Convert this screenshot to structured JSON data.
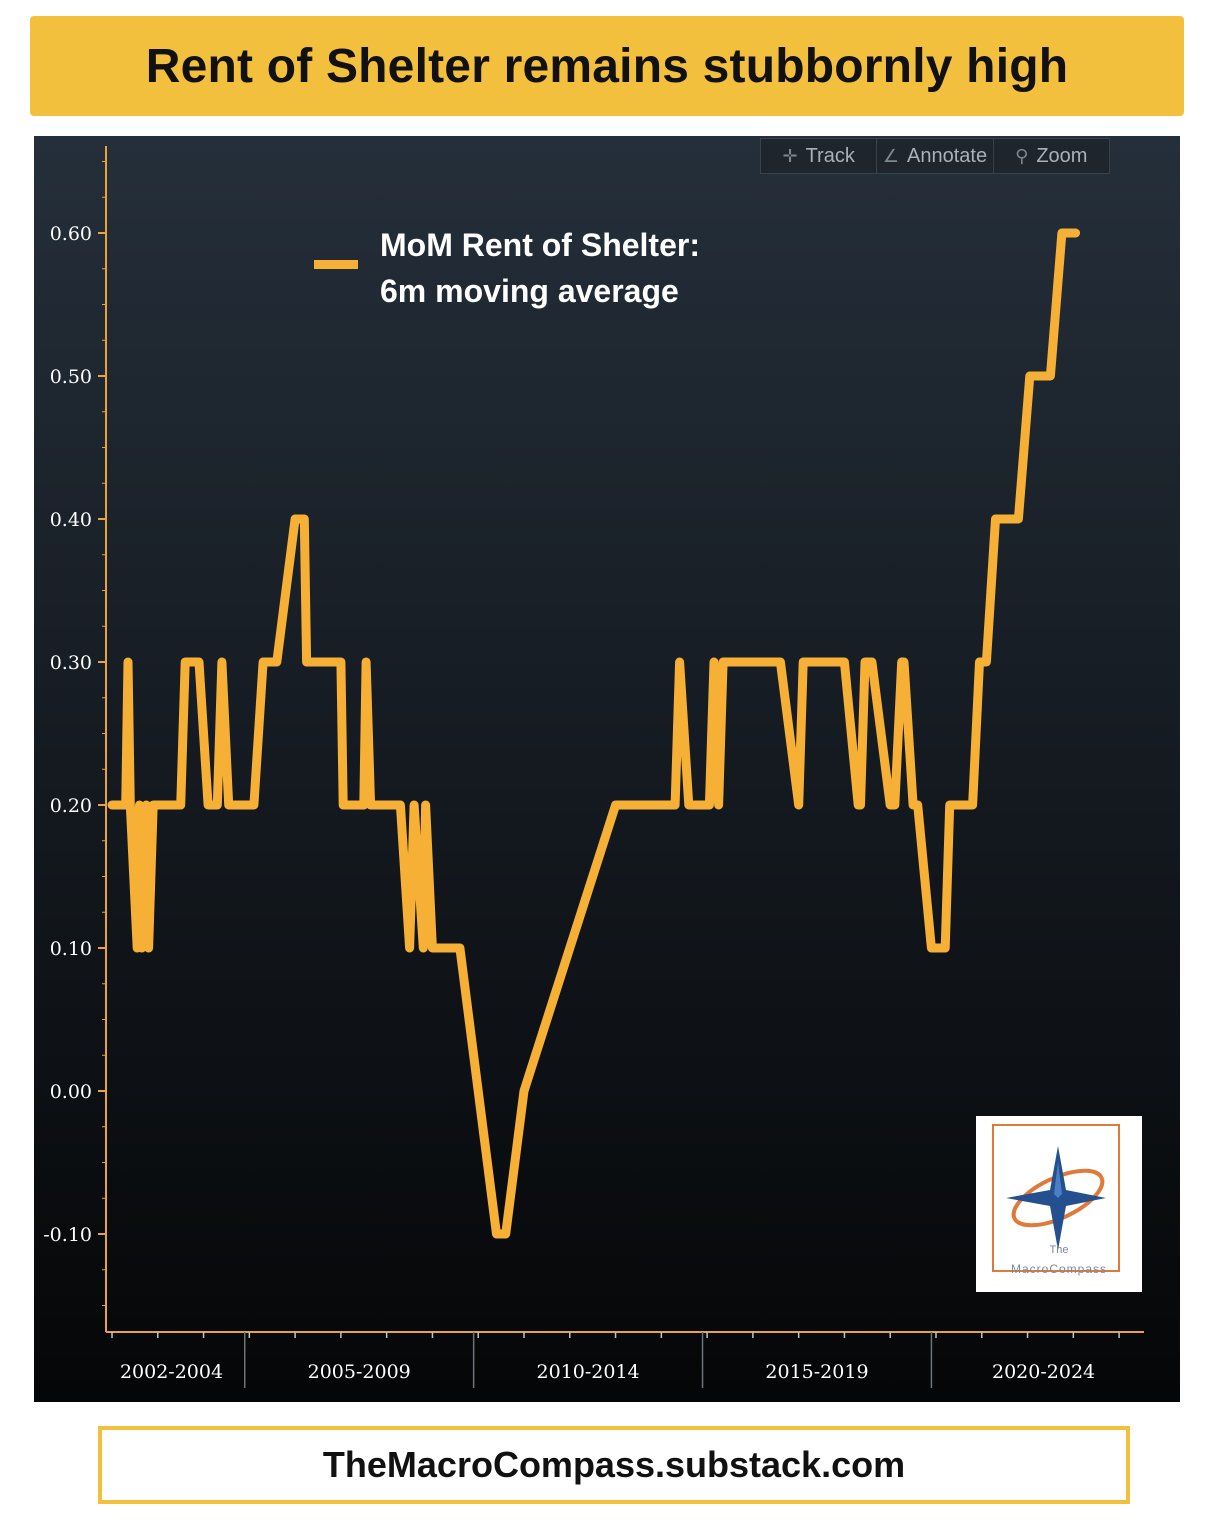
{
  "title": "Rent of Shelter remains stubbornly high",
  "footer": "TheMacroCompass.substack.com",
  "toolbar": {
    "track": "Track",
    "annotate": "Annotate",
    "zoom": "Zoom"
  },
  "legend": {
    "line1": "MoM Rent of Shelter:",
    "line2": "6m moving average"
  },
  "logo": {
    "line1": "The",
    "line2": "MacroCompass"
  },
  "colors": {
    "series": "#f5b035",
    "banner": "#f3c03e",
    "background": "#0b0e12"
  },
  "chart_data": {
    "type": "line",
    "series": [
      {
        "name": "MoM Rent of Shelter: 6m moving average",
        "x": [
          2002.0,
          2002.3,
          2002.35,
          2002.4,
          2002.55,
          2002.6,
          2002.65,
          2002.75,
          2002.8,
          2002.9,
          2003.0,
          2003.5,
          2003.6,
          2003.9,
          2004.1,
          2004.3,
          2004.4,
          2004.55,
          2004.7,
          2004.8,
          2005.1,
          2005.3,
          2005.6,
          2006.0,
          2006.1,
          2006.2,
          2006.25,
          2006.45,
          2006.55,
          2006.6,
          2007.0,
          2007.05,
          2007.3,
          2007.5,
          2007.55,
          2007.65,
          2007.7,
          2007.95,
          2008.3,
          2008.5,
          2008.6,
          2008.8,
          2008.85,
          2009.0,
          2009.1,
          2009.25,
          2009.4,
          2009.5,
          2009.6,
          2010.0,
          2010.4,
          2010.6,
          2011.0,
          2012.0,
          2013.0,
          2014.0,
          2014.2,
          2014.3,
          2014.4,
          2014.6,
          2015.05,
          2015.15,
          2015.25,
          2015.35,
          2015.4,
          2015.6,
          2016.0,
          2016.5,
          2016.6,
          2017.0,
          2017.1,
          2017.3,
          2017.6,
          2018.0,
          2018.3,
          2018.35,
          2018.45,
          2018.55,
          2018.6,
          2019.0,
          2019.1,
          2019.25,
          2019.3,
          2019.5,
          2019.6,
          2019.9,
          2020.2,
          2020.3,
          2020.8,
          2020.95,
          2021.1,
          2021.3,
          2021.4,
          2021.55,
          2021.8,
          2022.05,
          2022.4,
          2022.5,
          2022.75,
          2022.85,
          2023.05
        ],
        "y": [
          0.2,
          0.2,
          0.3,
          0.2,
          0.1,
          0.2,
          0.1,
          0.2,
          0.1,
          0.2,
          0.2,
          0.2,
          0.3,
          0.3,
          0.2,
          0.2,
          0.3,
          0.2,
          0.2,
          0.2,
          0.2,
          0.3,
          0.3,
          0.4,
          0.4,
          0.4,
          0.3,
          0.3,
          0.3,
          0.3,
          0.3,
          0.2,
          0.2,
          0.2,
          0.3,
          0.2,
          0.2,
          0.2,
          0.2,
          0.1,
          0.2,
          0.1,
          0.2,
          0.1,
          0.1,
          0.1,
          0.1,
          0.1,
          0.1,
          0.0,
          -0.1,
          -0.1,
          0.0,
          0.1,
          0.2,
          0.2,
          0.2,
          0.2,
          0.3,
          0.2,
          0.2,
          0.3,
          0.2,
          0.3,
          0.3,
          0.3,
          0.3,
          0.3,
          0.3,
          0.2,
          0.3,
          0.3,
          0.3,
          0.3,
          0.2,
          0.2,
          0.3,
          0.3,
          0.3,
          0.2,
          0.2,
          0.3,
          0.3,
          0.2,
          0.2,
          0.1,
          0.1,
          0.2,
          0.2,
          0.3,
          0.3,
          0.4,
          0.4,
          0.4,
          0.4,
          0.5,
          0.5,
          0.5,
          0.6,
          0.6,
          0.6
        ]
      }
    ],
    "ylim": [
      -0.15,
      0.65
    ],
    "yticks": [
      0.6,
      0.5,
      0.4,
      0.3,
      0.2,
      0.1,
      0.0,
      -0.1
    ],
    "ytick_labels": [
      "0.60",
      "0.50",
      "0.40",
      "0.30",
      "0.20",
      "0.10",
      "0.00",
      "-0.10"
    ],
    "x_period_labels": [
      "2002-2004",
      "2005-2009",
      "2010-2014",
      "2015-2019",
      "2020-2024"
    ],
    "title": "Rent of Shelter remains stubbornly high",
    "xlabel": "",
    "ylabel": "",
    "grid": false,
    "legend_position": "top-left"
  }
}
